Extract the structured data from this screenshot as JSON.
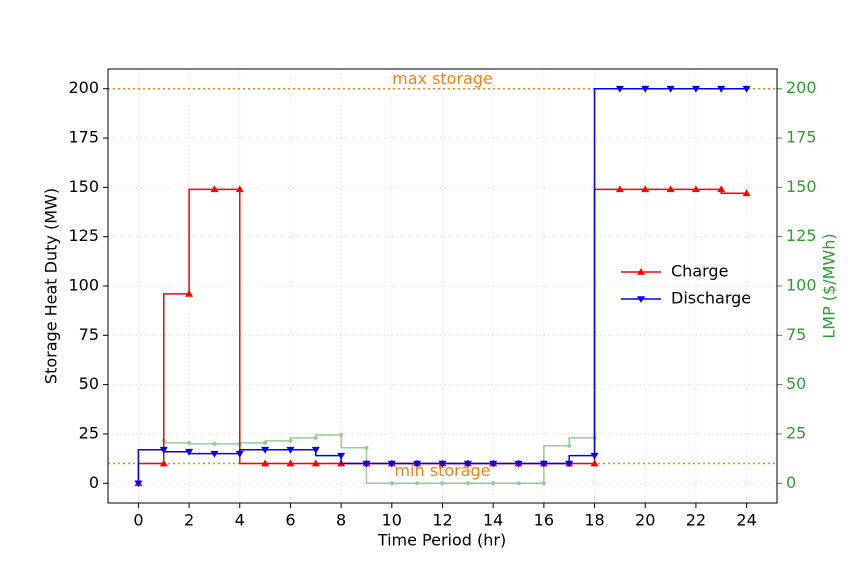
{
  "chart_data": {
    "type": "step",
    "x_label": "Time Period (hr)",
    "y_label": "Storage Heat Duty (MW)",
    "y2_label": "LMP ($/MWh)",
    "y2_color": "#2ca02c",
    "x": [
      0,
      1,
      2,
      3,
      4,
      5,
      6,
      7,
      8,
      9,
      10,
      11,
      12,
      13,
      14,
      15,
      16,
      17,
      18,
      19,
      20,
      21,
      22,
      23,
      24
    ],
    "series": [
      {
        "name": "Charge",
        "color": "#ff0000",
        "marker": "triangle-up",
        "values": [
          0,
          10,
          96,
          149,
          149,
          10,
          10,
          10,
          10,
          10,
          10,
          10,
          10,
          10,
          10,
          10,
          10,
          10,
          10,
          149,
          149,
          149,
          149,
          149,
          147
        ]
      },
      {
        "name": "Discharge",
        "color": "#0000ff",
        "marker": "triangle-down",
        "values": [
          0,
          17,
          16,
          15,
          15,
          17,
          17,
          17,
          14,
          10,
          10,
          10,
          10,
          10,
          10,
          10,
          10,
          10,
          14,
          200,
          200,
          200,
          200,
          200,
          200
        ]
      },
      {
        "color": "#2ca02c",
        "marker": "circle",
        "opacity": 0.5,
        "axis": "y2",
        "values": [
          null,
          21.5,
          20.5,
          20,
          20,
          20.5,
          21.5,
          23,
          24.5,
          18,
          0,
          0,
          0,
          0,
          0,
          0,
          0,
          19,
          23,
          200,
          200,
          200,
          200,
          200,
          200
        ]
      }
    ],
    "annotations": [
      {
        "text": "max storage",
        "y": 200,
        "color": "#ff7f0e"
      },
      {
        "text": "min storage",
        "y": 10,
        "color": "#ff7f0e"
      }
    ],
    "xlim": [
      -1.2,
      25.2
    ],
    "xticks": [
      0,
      2,
      4,
      6,
      8,
      10,
      12,
      14,
      16,
      18,
      20,
      22,
      24
    ],
    "ylim": [
      -10,
      210
    ],
    "yticks": [
      0,
      25,
      50,
      75,
      100,
      125,
      150,
      175,
      200
    ],
    "y2lim": [
      -10,
      210
    ],
    "y2ticks": [
      0,
      25,
      50,
      75,
      100,
      125,
      150,
      175,
      200
    ],
    "grid": true,
    "legend": "center right"
  }
}
